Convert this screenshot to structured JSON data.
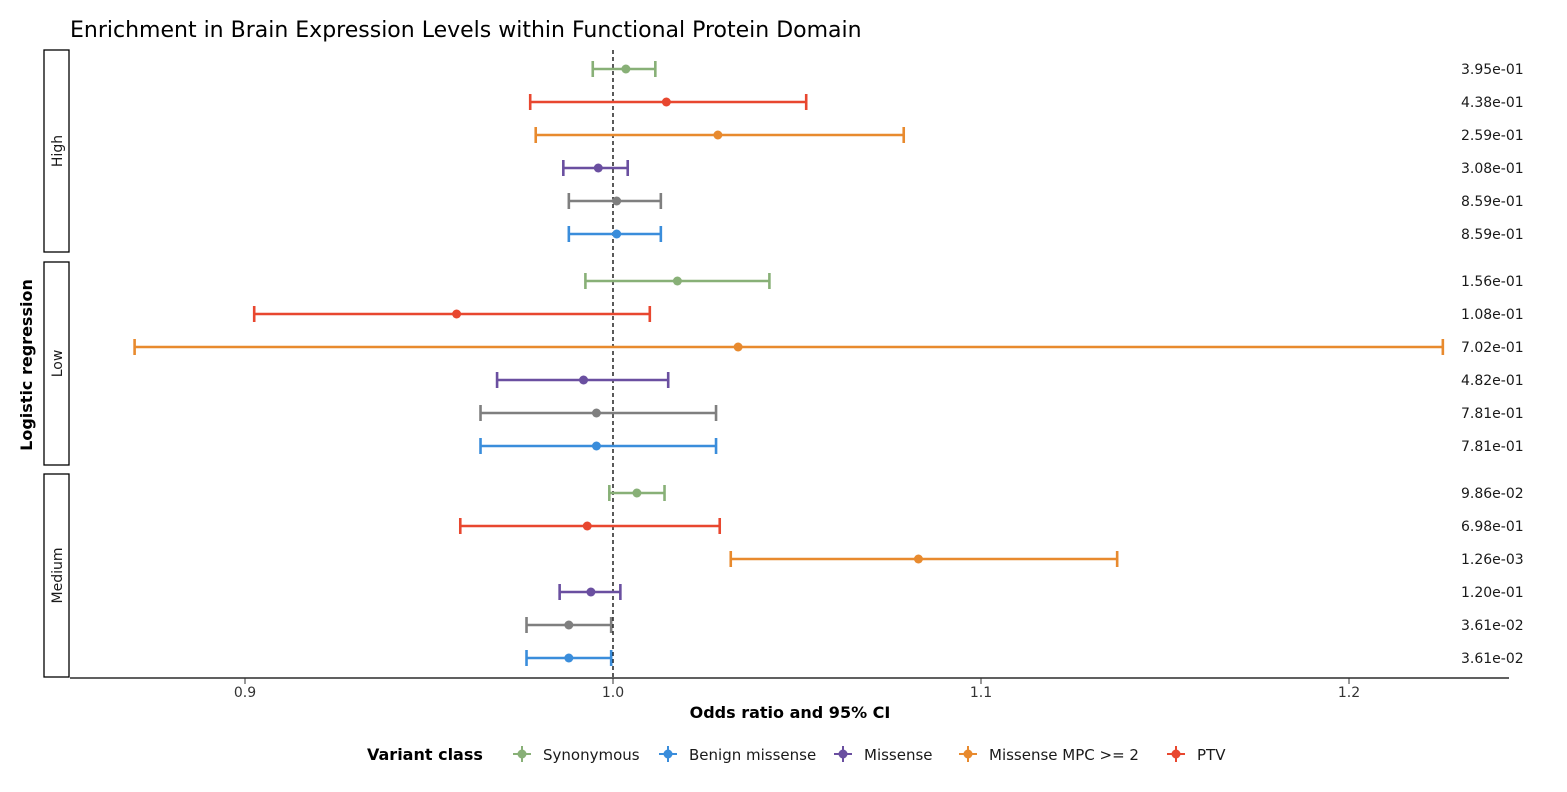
{
  "chart_data": {
    "type": "forest",
    "title": "Enrichment in Brain Expression Levels within Functional Protein Domain",
    "xlabel": "Odds ratio and 95% CI",
    "ylabel": "Logistic regression",
    "xlim": [
      0.855,
      1.245
    ],
    "x_ticks": [
      0.9,
      1.0,
      1.1,
      1.2
    ],
    "x_tick_labels": [
      "0.9",
      "1.0",
      "1.1",
      "1.2"
    ],
    "reference_line": 1.0,
    "legend": {
      "title": "Variant class",
      "placement": "bottom",
      "items": [
        {
          "label": "Synonymous",
          "color": "#88b077"
        },
        {
          "label": "Benign missense",
          "color": "#3a8ddb"
        },
        {
          "label": "Missense",
          "color": "#6a4fa0"
        },
        {
          "label": "Missense MPC >= 2",
          "color": "#e88a2e"
        },
        {
          "label": "PTV",
          "color": "#e8472f"
        }
      ]
    },
    "facets": [
      {
        "label": "High",
        "rows": [
          {
            "class": "Synonymous",
            "or": 1.0035,
            "lo": 0.9945,
            "hi": 1.0115,
            "p": "3.95e-01"
          },
          {
            "class": "PTV",
            "or": 1.0145,
            "lo": 0.9775,
            "hi": 1.0525,
            "p": "4.38e-01"
          },
          {
            "class": "Missense MPC >= 2",
            "or": 1.0285,
            "lo": 0.979,
            "hi": 1.079,
            "p": "2.59e-01"
          },
          {
            "class": "Missense",
            "or": 0.996,
            "lo": 0.9865,
            "hi": 1.004,
            "p": "3.08e-01"
          },
          {
            "class": "Missense (grey)",
            "or": 1.001,
            "lo": 0.988,
            "hi": 1.013,
            "p": "8.59e-01"
          },
          {
            "class": "Benign missense",
            "or": 1.001,
            "lo": 0.988,
            "hi": 1.013,
            "p": "8.59e-01"
          }
        ]
      },
      {
        "label": "Low",
        "rows": [
          {
            "class": "Synonymous",
            "or": 1.0175,
            "lo": 0.9925,
            "hi": 1.0425,
            "p": "1.56e-01"
          },
          {
            "class": "PTV",
            "or": 0.9575,
            "lo": 0.9025,
            "hi": 1.01,
            "p": "1.08e-01"
          },
          {
            "class": "Missense MPC >= 2",
            "or": 1.034,
            "lo": 0.87,
            "hi": 1.2255,
            "p": "7.02e-01"
          },
          {
            "class": "Missense",
            "or": 0.992,
            "lo": 0.9685,
            "hi": 1.015,
            "p": "4.82e-01"
          },
          {
            "class": "Missense (grey)",
            "or": 0.9955,
            "lo": 0.964,
            "hi": 1.028,
            "p": "7.81e-01"
          },
          {
            "class": "Benign missense",
            "or": 0.9955,
            "lo": 0.964,
            "hi": 1.028,
            "p": "7.81e-01"
          }
        ]
      },
      {
        "label": "Medium",
        "rows": [
          {
            "class": "Synonymous",
            "or": 1.0065,
            "lo": 0.999,
            "hi": 1.014,
            "p": "9.86e-02"
          },
          {
            "class": "PTV",
            "or": 0.993,
            "lo": 0.9585,
            "hi": 1.029,
            "p": "6.98e-01"
          },
          {
            "class": "Missense MPC >= 2",
            "or": 1.083,
            "lo": 1.032,
            "hi": 1.137,
            "p": "1.26e-03"
          },
          {
            "class": "Missense",
            "or": 0.994,
            "lo": 0.9855,
            "hi": 1.002,
            "p": "1.20e-01"
          },
          {
            "class": "Missense (grey)",
            "or": 0.988,
            "lo": 0.9765,
            "hi": 0.9995,
            "p": "3.61e-02"
          },
          {
            "class": "Benign missense",
            "or": 0.988,
            "lo": 0.9765,
            "hi": 0.9995,
            "p": "3.61e-02"
          }
        ]
      }
    ],
    "colors": {
      "Synonymous": "#88b077",
      "Benign missense": "#3a8ddb",
      "Missense": "#6a4fa0",
      "Missense (grey)": "#7f7f7f",
      "Missense MPC >= 2": "#e88a2e",
      "PTV": "#e8472f"
    }
  }
}
